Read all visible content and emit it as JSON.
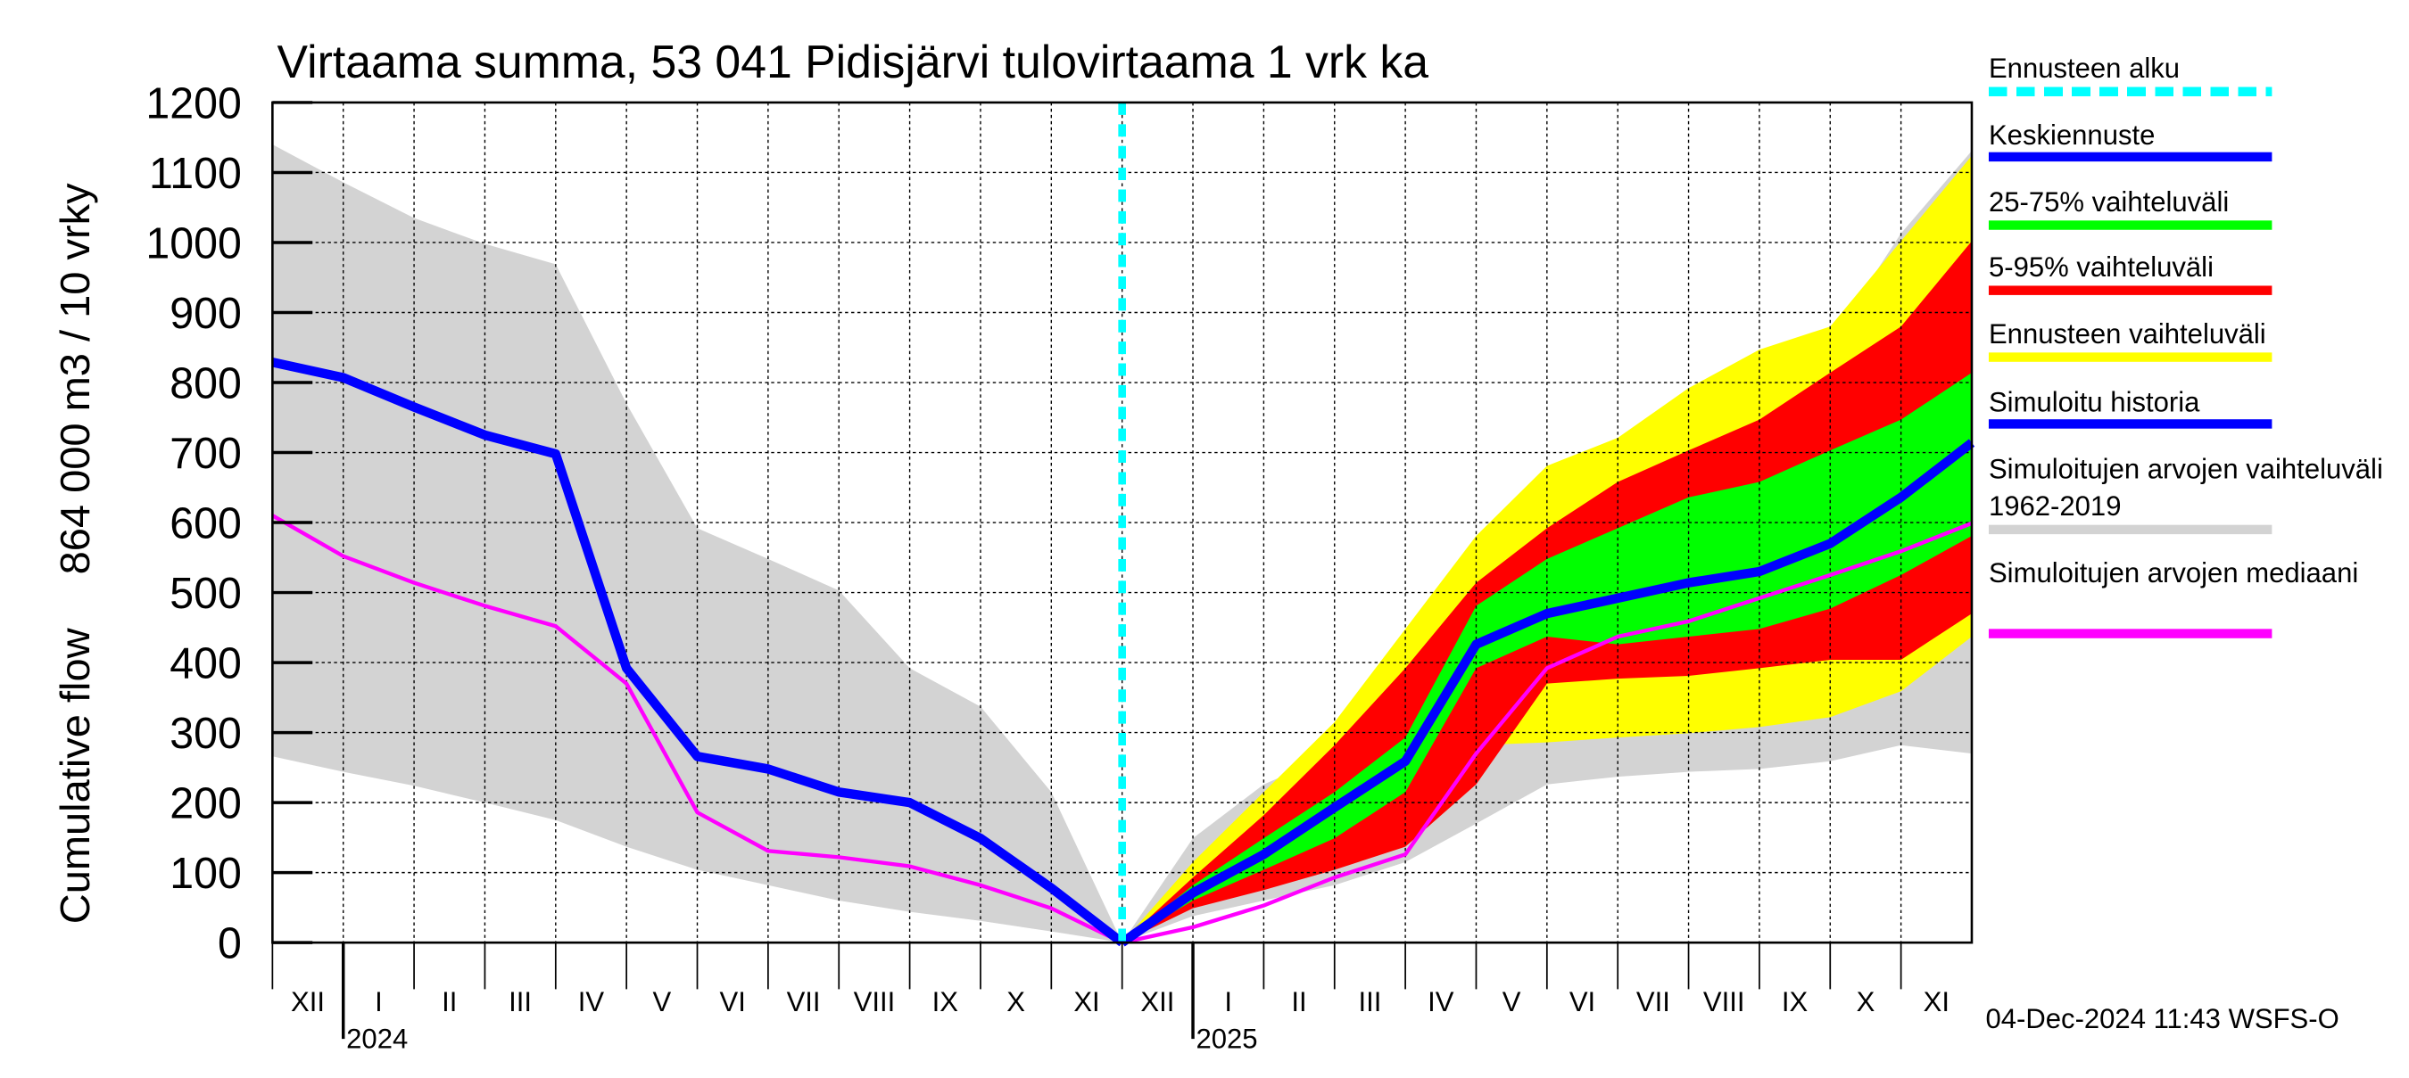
{
  "chart_data": {
    "type": "band-line",
    "title": "Virtaama summa, 53 041 Pidisjärvi tulovirtaama 1 vrk ka",
    "ylabel": [
      "Cumulative flow",
      "864 000 m3 / 10 vrky"
    ],
    "footer": "04-Dec-2024 11:43 WSFS-O",
    "x": [
      "2023-12",
      "2024-01",
      "2024-02",
      "2024-03",
      "2024-04",
      "2024-05",
      "2024-06",
      "2024-07",
      "2024-08",
      "2024-09",
      "2024-10",
      "2024-11",
      "2024-12",
      "2025-01",
      "2025-02",
      "2025-03",
      "2025-04",
      "2025-05",
      "2025-06",
      "2025-07",
      "2025-08",
      "2025-09",
      "2025-10",
      "2025-11",
      "2025-12"
    ],
    "xlim": [
      "2023-12",
      "2025-12"
    ],
    "month_labels": [
      {
        "value": "2023-12",
        "label": "XII"
      },
      {
        "value": "2024-01",
        "label": "I"
      },
      {
        "value": "2024-02",
        "label": "II"
      },
      {
        "value": "2024-03",
        "label": "III"
      },
      {
        "value": "2024-04",
        "label": "IV"
      },
      {
        "value": "2024-05",
        "label": "V"
      },
      {
        "value": "2024-06",
        "label": "VI"
      },
      {
        "value": "2024-07",
        "label": "VII"
      },
      {
        "value": "2024-08",
        "label": "VIII"
      },
      {
        "value": "2024-09",
        "label": "IX"
      },
      {
        "value": "2024-10",
        "label": "X"
      },
      {
        "value": "2024-11",
        "label": "XI"
      },
      {
        "value": "2024-12",
        "label": "XII"
      },
      {
        "value": "2025-01",
        "label": "I"
      },
      {
        "value": "2025-02",
        "label": "II"
      },
      {
        "value": "2025-03",
        "label": "III"
      },
      {
        "value": "2025-04",
        "label": "IV"
      },
      {
        "value": "2025-05",
        "label": "V"
      },
      {
        "value": "2025-06",
        "label": "VI"
      },
      {
        "value": "2025-07",
        "label": "VII"
      },
      {
        "value": "2025-08",
        "label": "VIII"
      },
      {
        "value": "2025-09",
        "label": "IX"
      },
      {
        "value": "2025-10",
        "label": "X"
      },
      {
        "value": "2025-11",
        "label": "XI"
      }
    ],
    "year_labels": [
      {
        "value": "2024-01",
        "label": "2024"
      },
      {
        "value": "2025-01",
        "label": "2025"
      }
    ],
    "ylim": [
      0,
      1200
    ],
    "yticks": [
      0,
      100,
      200,
      300,
      400,
      500,
      600,
      700,
      800,
      900,
      1000,
      1100,
      1200
    ],
    "grid": true,
    "vlines": [
      {
        "name": "Ennusteen alku",
        "color": "#00ffff",
        "x": "2024-12"
      }
    ],
    "series": [
      {
        "name": "Keskiennuste",
        "kind": "line",
        "color": "#0000ff",
        "width": 6,
        "values": [
          null,
          null,
          null,
          null,
          null,
          null,
          null,
          null,
          null,
          null,
          null,
          null,
          0,
          71,
          126,
          193,
          259,
          426,
          470,
          492,
          514,
          530,
          570,
          636,
          714
        ]
      },
      {
        "name": "25-75% vaihteluväli",
        "kind": "band",
        "color": "#00ff00",
        "lower": [
          null,
          null,
          null,
          null,
          null,
          null,
          null,
          null,
          null,
          null,
          null,
          null,
          0,
          60,
          104,
          149,
          215,
          392,
          437,
          426,
          437,
          448,
          477,
          525,
          581
        ],
        "upper": [
          null,
          null,
          null,
          null,
          null,
          null,
          null,
          null,
          null,
          null,
          null,
          null,
          0,
          82,
          149,
          215,
          293,
          481,
          548,
          592,
          636,
          658,
          703,
          747,
          814
        ]
      },
      {
        "name": "5-95% vaihteluväli",
        "kind": "band",
        "color": "#ff0000",
        "lower": [
          null,
          null,
          null,
          null,
          null,
          null,
          null,
          null,
          null,
          null,
          null,
          null,
          0,
          49,
          75,
          104,
          137,
          226,
          370,
          377,
          381,
          392,
          404,
          404,
          470
        ],
        "upper": [
          null,
          null,
          null,
          null,
          null,
          null,
          null,
          null,
          null,
          null,
          null,
          null,
          0,
          93,
          182,
          282,
          392,
          514,
          592,
          658,
          703,
          747,
          814,
          880,
          1002
        ]
      },
      {
        "name": "Ennusteen vaihteluväli",
        "kind": "band",
        "color": "#ffff00",
        "lower": [
          null,
          null,
          null,
          null,
          null,
          null,
          null,
          null,
          null,
          null,
          null,
          null,
          0,
          60,
          93,
          131,
          170,
          282,
          286,
          293,
          299,
          308,
          322,
          359,
          437
        ],
        "upper": [
          null,
          null,
          null,
          null,
          null,
          null,
          null,
          null,
          null,
          null,
          null,
          null,
          0,
          115,
          215,
          315,
          448,
          581,
          681,
          721,
          792,
          847,
          880,
          1002,
          1124
        ]
      },
      {
        "name": "Simuloitu historia",
        "kind": "line",
        "color": "#0000ff",
        "width": 6,
        "values": [
          829,
          807,
          765,
          725,
          698,
          392,
          266,
          248,
          215,
          200,
          149,
          78,
          0,
          null,
          null,
          null,
          null,
          null,
          null,
          null,
          null,
          null,
          null,
          null,
          null
        ]
      },
      {
        "name": "Simuloitujen arvojen vaihteluväli 1962-2019",
        "kind": "band",
        "color": "#d3d3d3",
        "lower": [
          266,
          244,
          224,
          200,
          175,
          137,
          104,
          82,
          60,
          44,
          31,
          16,
          0,
          38,
          60,
          82,
          115,
          170,
          226,
          237,
          244,
          248,
          259,
          282,
          270
        ],
        "upper": [
          1140,
          1086,
          1035,
          998,
          969,
          770,
          592,
          548,
          503,
          392,
          337,
          215,
          0,
          149,
          226,
          270,
          370,
          525,
          681,
          692,
          792,
          836,
          858,
          1013,
          1131
        ]
      },
      {
        "name": "Simuloitujen arvojen mediaani",
        "kind": "line",
        "color": "#ff00ff",
        "width": 2.5,
        "values": [
          610,
          552,
          514,
          481,
          452,
          370,
          186,
          131,
          122,
          109,
          82,
          49,
          0,
          22,
          53,
          93,
          126,
          270,
          392,
          437,
          459,
          492,
          525,
          559,
          599
        ]
      }
    ]
  }
}
